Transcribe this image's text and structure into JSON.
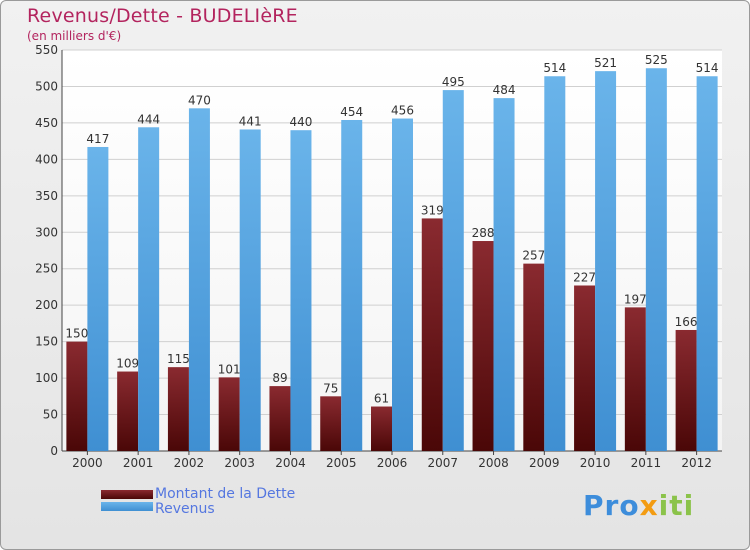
{
  "header": {
    "title": "Revenus/Dette - BUDELIèRE",
    "subtitle": "(en milliers d'€)"
  },
  "logo": {
    "text": "Proxiti"
  },
  "colors": {
    "debt_top": "#8a2a30",
    "debt_bottom": "#4a0707",
    "revenue_top": "#6ab4ea",
    "revenue_bottom": "#3f8fd2",
    "title": "#b3245e",
    "legend_text": "#5577e0"
  },
  "chart_data": {
    "type": "bar",
    "title": "Revenus/Dette - BUDELIèRE",
    "ylabel": "(en milliers d'€)",
    "xlabel": "",
    "ylim": [
      0,
      550
    ],
    "yticks": [
      0,
      50,
      100,
      150,
      200,
      250,
      300,
      350,
      400,
      450,
      500,
      550
    ],
    "grid": true,
    "legend_position": "bottom-left",
    "categories": [
      "2000",
      "2001",
      "2002",
      "2003",
      "2004",
      "2005",
      "2006",
      "2007",
      "2008",
      "2009",
      "2010",
      "2011",
      "2012"
    ],
    "series": [
      {
        "name": "Montant de la Dette",
        "values": [
          150,
          109,
          115,
          101,
          89,
          75,
          61,
          319,
          288,
          257,
          227,
          197,
          166
        ]
      },
      {
        "name": "Revenus",
        "values": [
          417,
          444,
          470,
          441,
          440,
          454,
          456,
          495,
          484,
          514,
          521,
          525,
          514
        ]
      }
    ]
  }
}
